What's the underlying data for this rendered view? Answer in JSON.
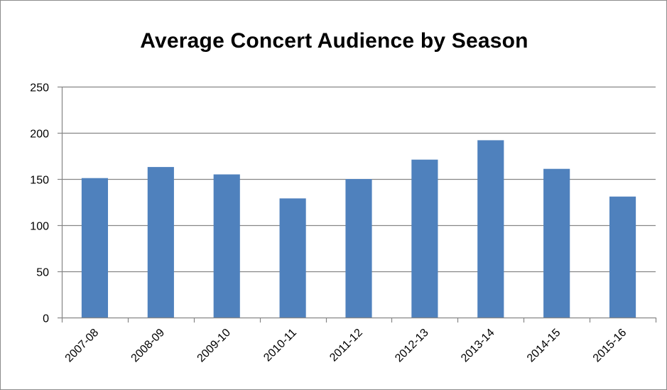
{
  "chart_data": {
    "type": "bar",
    "title": "Average Concert Audience by Season",
    "xlabel": "",
    "ylabel": "",
    "categories": [
      "2007-08",
      "2008-09",
      "2009-10",
      "2010-11",
      "2011-12",
      "2012-13",
      "2013-14",
      "2014-15",
      "2015-16"
    ],
    "series": [
      {
        "values": [
          151,
          163,
          155,
          129,
          150,
          171,
          192,
          161,
          131
        ]
      }
    ],
    "ylim": [
      0,
      250
    ],
    "yticks": [
      0,
      50,
      100,
      150,
      200,
      250
    ],
    "grid": true,
    "legend": "none",
    "bar_color": "#4f81bd",
    "grid_color": "#868686",
    "axis_color": "#868686"
  }
}
